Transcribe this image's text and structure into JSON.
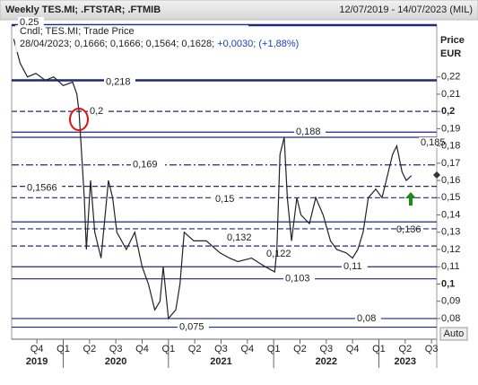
{
  "chart_data": {
    "type": "line",
    "title": "Weekly TES.MI; .FTSTAR; .FTMIB",
    "date_range": "12/07/2019 - 14/07/2023 (MIL)",
    "legend": {
      "line1": "Cndl; TES.MI; Trade Price",
      "line2": "28/04/2023; 0,1666; 0,1666; 0,1564; 0,1628;",
      "change": "+0,0030; (+1,88%)"
    },
    "y_axis_label": "Price",
    "y_axis_unit": "EUR",
    "button": "Auto",
    "xlim": [
      2019.51,
      2023.55
    ],
    "ylim": [
      0.068,
      0.25
    ],
    "xticks": [
      {
        "value": 2019.75,
        "label": "Q4"
      },
      {
        "value": 2020.0,
        "label": "Q1"
      },
      {
        "value": 2020.25,
        "label": "Q2"
      },
      {
        "value": 2020.5,
        "label": "Q3"
      },
      {
        "value": 2020.75,
        "label": "Q4"
      },
      {
        "value": 2021.0,
        "label": "Q1"
      },
      {
        "value": 2021.25,
        "label": "Q2"
      },
      {
        "value": 2021.5,
        "label": "Q3"
      },
      {
        "value": 2021.75,
        "label": "Q4"
      },
      {
        "value": 2022.0,
        "label": "Q1"
      },
      {
        "value": 2022.25,
        "label": "Q2"
      },
      {
        "value": 2022.5,
        "label": "Q3"
      },
      {
        "value": 2022.75,
        "label": "Q4"
      },
      {
        "value": 2023.0,
        "label": "Q1"
      },
      {
        "value": 2023.25,
        "label": "Q2"
      },
      {
        "value": 2023.5,
        "label": "Q3"
      }
    ],
    "year_labels": [
      {
        "value": 2019.75,
        "label": "2019"
      },
      {
        "value": 2020.5,
        "label": "2020"
      },
      {
        "value": 2021.5,
        "label": "2021"
      },
      {
        "value": 2022.5,
        "label": "2022"
      },
      {
        "value": 2023.25,
        "label": "2023"
      }
    ],
    "yticks": [
      {
        "value": 0.08,
        "label": "0,08"
      },
      {
        "value": 0.09,
        "label": "0,09"
      },
      {
        "value": 0.1,
        "label": "0,1"
      },
      {
        "value": 0.11,
        "label": "0,11"
      },
      {
        "value": 0.12,
        "label": "0,12"
      },
      {
        "value": 0.13,
        "label": "0,13"
      },
      {
        "value": 0.14,
        "label": "0,14"
      },
      {
        "value": 0.15,
        "label": "0,15"
      },
      {
        "value": 0.16,
        "label": "0,16"
      },
      {
        "value": 0.17,
        "label": "0,17"
      },
      {
        "value": 0.18,
        "label": "0,18"
      },
      {
        "value": 0.19,
        "label": "0,19"
      },
      {
        "value": 0.2,
        "label": "0,2"
      },
      {
        "value": 0.21,
        "label": "0,21"
      },
      {
        "value": 0.22,
        "label": "0,22"
      }
    ],
    "levels": [
      {
        "value": 0.25,
        "label": "0,25",
        "style": "thick"
      },
      {
        "value": 0.218,
        "label": "0,218",
        "style": "thick"
      },
      {
        "value": 0.2,
        "label": "0,2",
        "style": "dashed"
      },
      {
        "value": 0.188,
        "label": "0,188",
        "style": "solid"
      },
      {
        "value": 0.185,
        "label": "0,185",
        "style": "solid"
      },
      {
        "value": 0.169,
        "label": "0,169",
        "style": "dashdot"
      },
      {
        "value": 0.1566,
        "label": "0,1566",
        "style": "dashed"
      },
      {
        "value": 0.15,
        "label": "0,15",
        "style": "dashed"
      },
      {
        "value": 0.136,
        "label": "0,136",
        "style": "solid"
      },
      {
        "value": 0.132,
        "label": "0,132",
        "style": "dashed"
      },
      {
        "value": 0.122,
        "label": "0,122",
        "style": "dashed"
      },
      {
        "value": 0.11,
        "label": "0,11",
        "style": "solid"
      },
      {
        "value": 0.103,
        "label": "0,103",
        "style": "solid"
      },
      {
        "value": 0.08,
        "label": "0,08",
        "style": "solid"
      },
      {
        "value": 0.075,
        "label": "0,075",
        "style": "solid"
      }
    ],
    "level_color": "#1f2a7a",
    "series": [
      {
        "name": "TES.MI",
        "color": "#222222",
        "x": [
          2019.53,
          2019.59,
          2019.66,
          2019.74,
          2019.83,
          2019.91,
          2020.0,
          2020.09,
          2020.13,
          2020.15,
          2020.2,
          2020.22,
          2020.26,
          2020.3,
          2020.36,
          2020.43,
          2020.47,
          2020.51,
          2020.6,
          2020.68,
          2020.75,
          2020.81,
          2020.87,
          2020.92,
          2020.95,
          2021.0,
          2021.07,
          2021.11,
          2021.15,
          2021.24,
          2021.36,
          2021.49,
          2021.58,
          2021.66,
          2021.79,
          2021.92,
          2022.01,
          2022.03,
          2022.06,
          2022.1,
          2022.13,
          2022.17,
          2022.22,
          2022.26,
          2022.34,
          2022.4,
          2022.47,
          2022.54,
          2022.6,
          2022.69,
          2022.75,
          2022.8,
          2022.85,
          2022.9,
          2022.97,
          2023.03,
          2023.07,
          2023.13,
          2023.17,
          2023.22,
          2023.26,
          2023.31
        ],
        "values": [
          0.242,
          0.228,
          0.22,
          0.222,
          0.218,
          0.22,
          0.215,
          0.217,
          0.21,
          0.2,
          0.15,
          0.12,
          0.16,
          0.13,
          0.115,
          0.16,
          0.15,
          0.13,
          0.12,
          0.13,
          0.11,
          0.1,
          0.085,
          0.09,
          0.11,
          0.08,
          0.085,
          0.1,
          0.13,
          0.125,
          0.125,
          0.118,
          0.115,
          0.113,
          0.115,
          0.11,
          0.107,
          0.12,
          0.175,
          0.185,
          0.15,
          0.125,
          0.15,
          0.14,
          0.135,
          0.15,
          0.14,
          0.125,
          0.12,
          0.118,
          0.115,
          0.12,
          0.13,
          0.15,
          0.155,
          0.15,
          0.16,
          0.175,
          0.18,
          0.165,
          0.16,
          0.1628
        ]
      }
    ]
  }
}
